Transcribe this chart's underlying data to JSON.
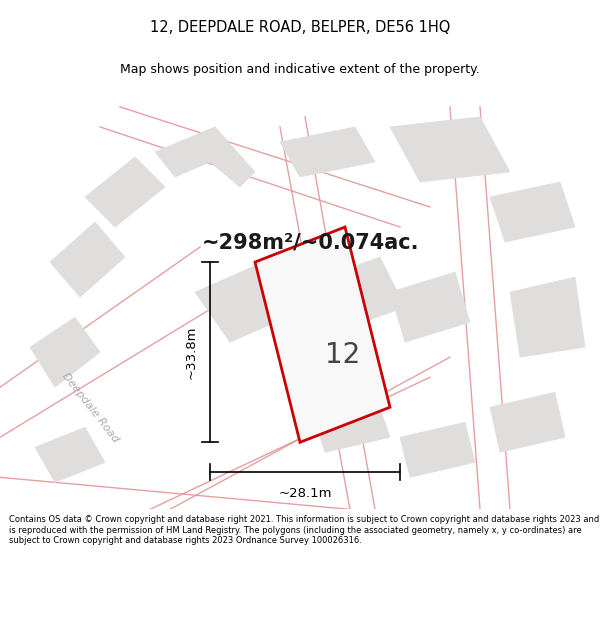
{
  "title": "12, DEEPDALE ROAD, BELPER, DE56 1HQ",
  "subtitle": "Map shows position and indicative extent of the property.",
  "area_text": "~298m²/~0.074ac.",
  "property_number": "12",
  "dim_width": "~28.1m",
  "dim_height": "~33.8m",
  "road_label": "Deepdale Road",
  "road_label2": "Deepdale",
  "footer": "Contains OS data © Crown copyright and database right 2021. This information is subject to Crown copyright and database rights 2023 and is reproduced with the permission of HM Land Registry. The polygons (including the associated geometry, namely x, y co-ordinates) are subject to Crown copyright and database rights 2023 Ordnance Survey 100026316.",
  "bg_color": "#f2f0ee",
  "title_bg": "#ffffff",
  "footer_bg": "#ffffff",
  "property_fill": "#f8f8f8",
  "property_edge": "#cc0000",
  "road_color": "#e09090",
  "building_fill": "#e0dedd",
  "building_edge": "#e0dedd"
}
